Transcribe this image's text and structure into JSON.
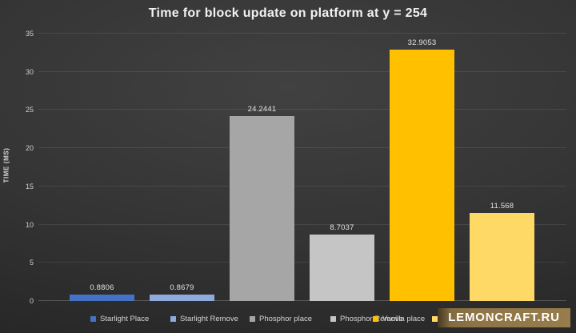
{
  "chart_data": {
    "type": "bar",
    "title": "Time for block update on platform at y = 254",
    "xlabel": "",
    "ylabel": "TIME (MS)",
    "ylim": [
      0,
      35
    ],
    "yticks": [
      0,
      5,
      10,
      15,
      20,
      25,
      30,
      35
    ],
    "grid": true,
    "legend_position": "bottom",
    "series": [
      {
        "name": "Starlight Place",
        "value": 0.8806,
        "data_label": "0.8806",
        "color": "#4472C4",
        "legend_label_visible": true
      },
      {
        "name": "Starlight Remove",
        "value": 0.8679,
        "data_label": "0.8679",
        "color": "#8FAADC",
        "legend_label_visible": true
      },
      {
        "name": "Phosphor place",
        "value": 24.2441,
        "data_label": "24.2441",
        "color": "#A6A6A6",
        "legend_label_visible": true
      },
      {
        "name": "Phosphor Remove",
        "value": 8.7037,
        "data_label": "8.7037",
        "color": "#C5C5C5",
        "legend_label_visible": true
      },
      {
        "name": "Vanilla place",
        "value": 32.9053,
        "data_label": "32.9053",
        "color": "#FFC000",
        "legend_label_visible": true
      },
      {
        "name": "",
        "value": 11.568,
        "data_label": "11.568",
        "color": "#FFD966",
        "legend_label_visible": false
      }
    ]
  },
  "watermark": {
    "text": "LEMONCRAFT.RU"
  }
}
